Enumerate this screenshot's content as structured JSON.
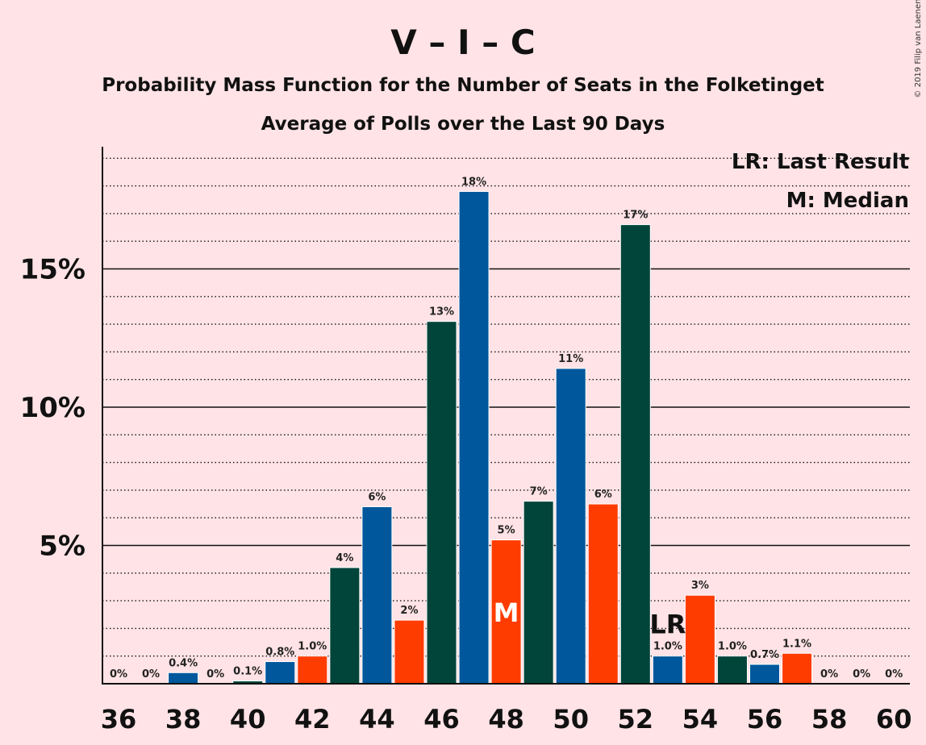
{
  "chart_data": {
    "type": "bar",
    "title": "V – I – C",
    "subtitle": "Probability Mass Function for the Number of Seats in the Folketinget",
    "subtitle2": "Average of Polls over the Last 90 Days",
    "copyright": "© 2019 Filip van Laenen",
    "legend": [
      "LR: Last Result",
      "M: Median"
    ],
    "legend_position": "top-right",
    "x": [
      36,
      37,
      38,
      39,
      40,
      41,
      42,
      43,
      44,
      45,
      46,
      47,
      48,
      49,
      50,
      51,
      52,
      53,
      54,
      55,
      56,
      57,
      58,
      59,
      60
    ],
    "xticks": [
      36,
      38,
      40,
      42,
      44,
      46,
      48,
      50,
      52,
      54,
      56,
      58,
      60
    ],
    "values": [
      0,
      0,
      0.4,
      0,
      0.1,
      0.8,
      1.0,
      4.2,
      6.4,
      2.3,
      13.1,
      17.8,
      5.2,
      6.6,
      11.4,
      6.5,
      16.6,
      1.0,
      3.2,
      1.0,
      0.7,
      1.1,
      0,
      0,
      0
    ],
    "labels": [
      "0%",
      "0%",
      "0.4%",
      "0%",
      "0.1%",
      "0.8%",
      "1.0%",
      "4%",
      "6%",
      "2%",
      "13%",
      "18%",
      "5%",
      "7%",
      "11%",
      "6%",
      "17%",
      "1.0%",
      "3%",
      "1.0%",
      "0.7%",
      "1.1%",
      "0%",
      "0%",
      "0%"
    ],
    "colors": {
      "V": "#ff3c00",
      "I": "#01443a",
      "C": "#00579b"
    },
    "color_sequence": [
      "V",
      "I",
      "C"
    ],
    "yticks": [
      5,
      10,
      15
    ],
    "ytick_labels": [
      "5%",
      "10%",
      "15%"
    ],
    "ylim": [
      0,
      19.4
    ],
    "minor_gridline_step": 1,
    "median": {
      "x": 48,
      "label": "M"
    },
    "last_result": {
      "x": 53,
      "label": "LR"
    }
  }
}
